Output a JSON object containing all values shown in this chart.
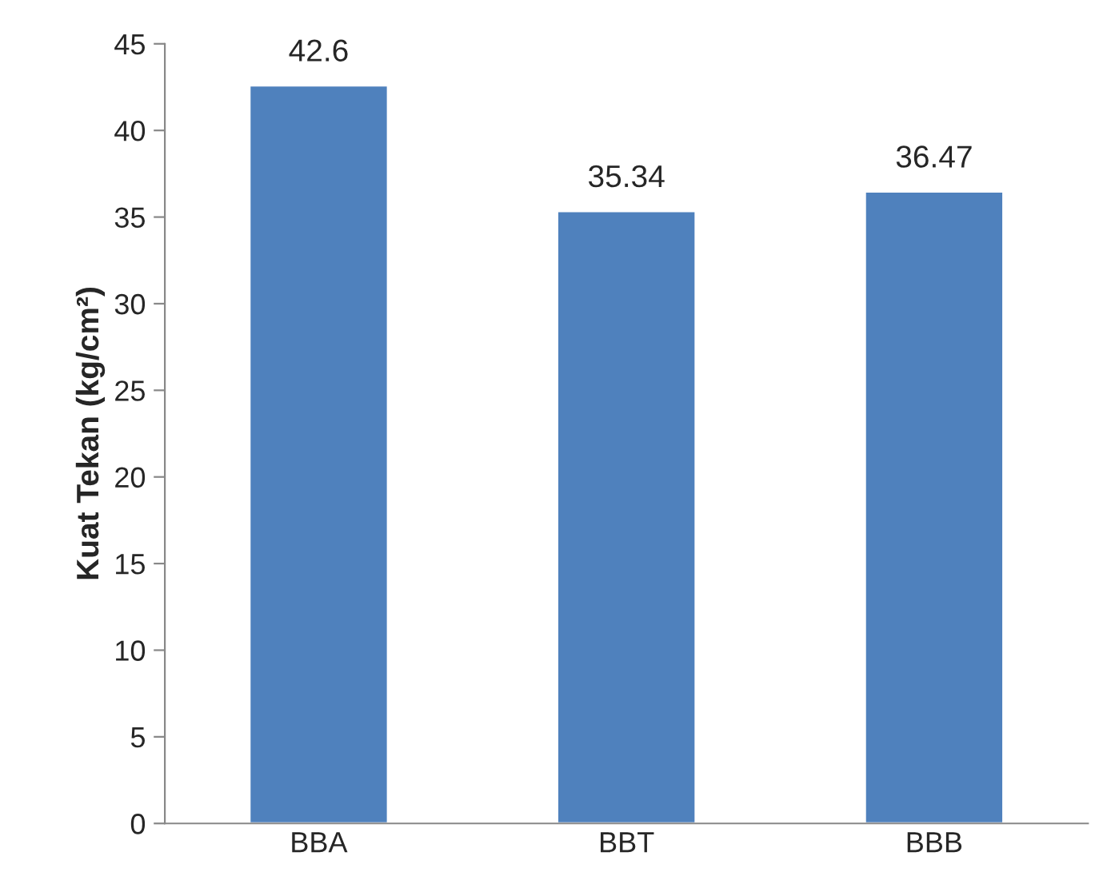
{
  "chart_data": {
    "type": "bar",
    "ylabel": "Kuat Tekan (kg/cm²)",
    "categories": [
      "BBA",
      "BBT",
      "BBB"
    ],
    "values": [
      42.6,
      35.34,
      36.47
    ],
    "color": "#4f81bd",
    "ylim": [
      0,
      45
    ],
    "yticks": [
      0,
      5,
      10,
      15,
      20,
      25,
      30,
      35,
      40,
      45
    ],
    "data_labels": true,
    "grid": false
  }
}
